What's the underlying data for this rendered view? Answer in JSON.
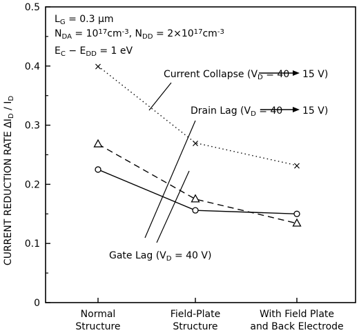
{
  "chart_data": {
    "type": "line",
    "categories": [
      "Normal\nStructure",
      "Field-Plate\nStructure",
      "With Field Plate\nand Back Electrode"
    ],
    "ylabel": "CURRENT REDUCTION RATE  ΔI_D / I_D",
    "ylim": [
      0,
      0.5
    ],
    "yticks": [
      "0",
      "0.1",
      "0.2",
      "0.3",
      "0.4",
      "0.5"
    ],
    "grid": false,
    "series": [
      {
        "name": "Current Collapse (V_D = 40 → 15 V)",
        "marker": "x",
        "line": "dotted",
        "values": [
          0.4,
          0.27,
          0.232
        ]
      },
      {
        "name": "Drain Lag (V_D = 40 → 15 V)",
        "marker": "triangle",
        "line": "dashed",
        "values": [
          0.268,
          0.175,
          0.134
        ]
      },
      {
        "name": "Gate Lag (V_D = 40 V)",
        "marker": "circle",
        "line": "solid",
        "values": [
          0.225,
          0.156,
          0.15
        ]
      }
    ],
    "parameters": [
      "L_G = 0.3 µm",
      "N_DA = 10^17 cm^-3,  N_DD = 2×10^17 cm^-3",
      "E_C − E_DD = 1 eV"
    ]
  }
}
